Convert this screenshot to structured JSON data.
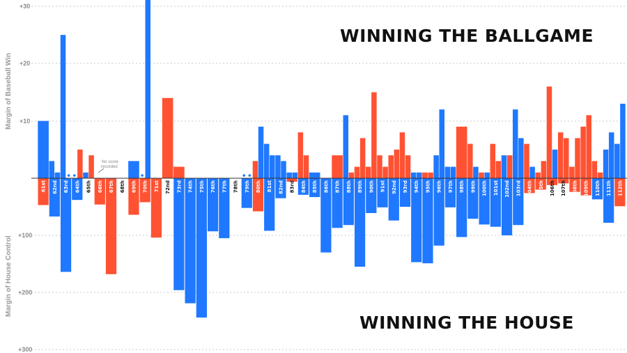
{
  "headline_top": "WINNING THE BALLGAME",
  "headline_bottom": "WINNING THE HOUSE",
  "note": {
    "line1": "No score",
    "line2": "recorded"
  },
  "colors": {
    "democrat": "#1f78ff",
    "republican": "#ff5233",
    "grid": "#c8c8c8",
    "baseline": "#333333"
  },
  "chart_data": {
    "type": "bar",
    "upper_axis_label": "Margin of Baseball Win",
    "lower_axis_label": "Margin of House Control",
    "upper_ticks": [
      "+30",
      "+20",
      "+10"
    ],
    "lower_ticks": [
      "+100",
      "+200",
      "+300"
    ],
    "upper_ylim": [
      0,
      30
    ],
    "lower_ylim": [
      0,
      300
    ],
    "legend": "none",
    "grid": true,
    "congresses": [
      "61st",
      "62nd",
      "63rd",
      "64th",
      "65th",
      "66th",
      "67th",
      "68th",
      "69th",
      "70th",
      "71st",
      "72nd",
      "73rd",
      "74th",
      "75th",
      "76th",
      "77th",
      "78th",
      "79th",
      "80th",
      "81st",
      "82nd",
      "83rd",
      "84th",
      "85th",
      "86th",
      "87th",
      "88th",
      "89th",
      "90th",
      "91st",
      "92nd",
      "93rd",
      "94th",
      "95th",
      "96th",
      "97th",
      "98th",
      "99th",
      "100th",
      "101st",
      "102nd",
      "103rd",
      "104th",
      "105th",
      "106th",
      "107th",
      "108th",
      "109th",
      "110th",
      "111th",
      "112th"
    ],
    "baseball_games": [
      {
        "congress": "61st",
        "winner": "D",
        "margin": 10
      },
      {
        "congress": "62nd",
        "winner": "D",
        "margin": 3
      },
      {
        "congress": "62nd",
        "winner": "D",
        "margin": 1
      },
      {
        "congress": "63rd",
        "winner": "D",
        "margin": 25
      },
      {
        "congress": "63rd",
        "winner": "D",
        "margin": 0
      },
      {
        "congress": "64th",
        "winner": "D",
        "margin": 0
      },
      {
        "congress": "64th",
        "winner": "R",
        "margin": 5
      },
      {
        "congress": "65th",
        "winner": "D",
        "margin": 1
      },
      {
        "congress": "65th",
        "winner": "R",
        "margin": 4
      },
      {
        "congress": "69th",
        "winner": "D",
        "margin": 3
      },
      {
        "congress": "70th",
        "winner": "D",
        "margin": 0
      },
      {
        "congress": "70th",
        "winner": "D",
        "margin": 33
      },
      {
        "congress": "72nd",
        "winner": "R",
        "margin": 14
      },
      {
        "congress": "73rd",
        "winner": "R",
        "margin": 2
      },
      {
        "congress": "79th",
        "winner": "D",
        "margin": 0
      },
      {
        "congress": "79th",
        "winner": "D",
        "margin": 0
      },
      {
        "congress": "80th",
        "winner": "R",
        "margin": 3
      },
      {
        "congress": "80th",
        "winner": "D",
        "margin": 9
      },
      {
        "congress": "81st",
        "winner": "D",
        "margin": 6
      },
      {
        "congress": "81st",
        "winner": "D",
        "margin": 4
      },
      {
        "congress": "82nd",
        "winner": "D",
        "margin": 4
      },
      {
        "congress": "82nd",
        "winner": "D",
        "margin": 3
      },
      {
        "congress": "83rd",
        "winner": "D",
        "margin": 1
      },
      {
        "congress": "83rd",
        "winner": "D",
        "margin": 1
      },
      {
        "congress": "84th",
        "winner": "R",
        "margin": 8
      },
      {
        "congress": "84th",
        "winner": "R",
        "margin": 4
      },
      {
        "congress": "85th",
        "winner": "D",
        "margin": 1
      },
      {
        "congress": "87th",
        "winner": "R",
        "margin": 4
      },
      {
        "congress": "88th",
        "winner": "D",
        "margin": 11
      },
      {
        "congress": "88th",
        "winner": "R",
        "margin": 1
      },
      {
        "congress": "89th",
        "winner": "R",
        "margin": 2
      },
      {
        "congress": "89th",
        "winner": "R",
        "margin": 7
      },
      {
        "congress": "90th",
        "winner": "R",
        "margin": 2
      },
      {
        "congress": "90th",
        "winner": "R",
        "margin": 15
      },
      {
        "congress": "91st",
        "winner": "R",
        "margin": 4
      },
      {
        "congress": "91st",
        "winner": "R",
        "margin": 2
      },
      {
        "congress": "92nd",
        "winner": "R",
        "margin": 4
      },
      {
        "congress": "92nd",
        "winner": "R",
        "margin": 5
      },
      {
        "congress": "93rd",
        "winner": "R",
        "margin": 8
      },
      {
        "congress": "93rd",
        "winner": "R",
        "margin": 4
      },
      {
        "congress": "94th",
        "winner": "D",
        "margin": 1
      },
      {
        "congress": "94th",
        "winner": "D",
        "margin": 1
      },
      {
        "congress": "95th",
        "winner": "R",
        "margin": 1
      },
      {
        "congress": "95th",
        "winner": "R",
        "margin": 1
      },
      {
        "congress": "96th",
        "winner": "D",
        "margin": 4
      },
      {
        "congress": "96th",
        "winner": "D",
        "margin": 12
      },
      {
        "congress": "97th",
        "winner": "D",
        "margin": 2
      },
      {
        "congress": "97th",
        "winner": "D",
        "margin": 2
      },
      {
        "congress": "98th",
        "winner": "R",
        "margin": 9
      },
      {
        "congress": "99th",
        "winner": "R",
        "margin": 6
      },
      {
        "congress": "99th",
        "winner": "D",
        "margin": 2
      },
      {
        "congress": "100th",
        "winner": "R",
        "margin": 1
      },
      {
        "congress": "100th",
        "winner": "D",
        "margin": 1
      },
      {
        "congress": "101st",
        "winner": "R",
        "margin": 6
      },
      {
        "congress": "101st",
        "winner": "R",
        "margin": 3
      },
      {
        "congress": "102nd",
        "winner": "D",
        "margin": 4
      },
      {
        "congress": "102nd",
        "winner": "R",
        "margin": 4
      },
      {
        "congress": "103rd",
        "winner": "D",
        "margin": 12
      },
      {
        "congress": "103rd",
        "winner": "D",
        "margin": 7
      },
      {
        "congress": "104th",
        "winner": "R",
        "margin": 6
      },
      {
        "congress": "104th",
        "winner": "D",
        "margin": 2
      },
      {
        "congress": "105th",
        "winner": "R",
        "margin": 1
      },
      {
        "congress": "105th",
        "winner": "R",
        "margin": 3
      },
      {
        "congress": "106th",
        "winner": "R",
        "margin": 16
      },
      {
        "congress": "106th",
        "winner": "D",
        "margin": 5
      },
      {
        "congress": "107th",
        "winner": "R",
        "margin": 8
      },
      {
        "congress": "107th",
        "winner": "R",
        "margin": 7
      },
      {
        "congress": "108th",
        "winner": "R",
        "margin": 2
      },
      {
        "congress": "108th",
        "winner": "R",
        "margin": 7
      },
      {
        "congress": "109th",
        "winner": "R",
        "margin": 9
      },
      {
        "congress": "109th",
        "winner": "R",
        "margin": 11
      },
      {
        "congress": "110th",
        "winner": "R",
        "margin": 3
      },
      {
        "congress": "110th",
        "winner": "R",
        "margin": 1
      },
      {
        "congress": "111th",
        "winner": "D",
        "margin": 5
      },
      {
        "congress": "111th",
        "winner": "D",
        "margin": 8
      },
      {
        "congress": "112th",
        "winner": "D",
        "margin": 6
      },
      {
        "congress": "112th",
        "winner": "D",
        "margin": 13
      }
    ],
    "house_control": [
      {
        "congress": "61st",
        "party": "R",
        "margin": 47
      },
      {
        "congress": "62nd",
        "party": "D",
        "margin": 67
      },
      {
        "congress": "63rd",
        "party": "D",
        "margin": 164
      },
      {
        "congress": "64th",
        "party": "D",
        "margin": 38
      },
      {
        "congress": "65th",
        "party": "D",
        "margin": 0
      },
      {
        "congress": "66th",
        "party": "R",
        "margin": 46
      },
      {
        "congress": "67th",
        "party": "R",
        "margin": 168
      },
      {
        "congress": "68th",
        "party": "R",
        "margin": 0
      },
      {
        "congress": "69th",
        "party": "R",
        "margin": 64
      },
      {
        "congress": "70th",
        "party": "R",
        "margin": 42
      },
      {
        "congress": "71st",
        "party": "R",
        "margin": 104
      },
      {
        "congress": "72nd",
        "party": "D",
        "margin": 0
      },
      {
        "congress": "73rd",
        "party": "D",
        "margin": 196
      },
      {
        "congress": "74th",
        "party": "D",
        "margin": 219
      },
      {
        "congress": "75th",
        "party": "D",
        "margin": 244
      },
      {
        "congress": "76th",
        "party": "D",
        "margin": 93
      },
      {
        "congress": "77th",
        "party": "D",
        "margin": 105
      },
      {
        "congress": "78th",
        "party": "D",
        "margin": 0
      },
      {
        "congress": "79th",
        "party": "D",
        "margin": 52
      },
      {
        "congress": "80th",
        "party": "R",
        "margin": 58
      },
      {
        "congress": "81st",
        "party": "D",
        "margin": 92
      },
      {
        "congress": "82nd",
        "party": "D",
        "margin": 35
      },
      {
        "congress": "83rd",
        "party": "R",
        "margin": 6
      },
      {
        "congress": "84th",
        "party": "D",
        "margin": 29
      },
      {
        "congress": "85th",
        "party": "D",
        "margin": 33
      },
      {
        "congress": "86th",
        "party": "D",
        "margin": 130
      },
      {
        "congress": "87th",
        "party": "D",
        "margin": 87
      },
      {
        "congress": "88th",
        "party": "D",
        "margin": 82
      },
      {
        "congress": "89th",
        "party": "D",
        "margin": 155
      },
      {
        "congress": "90th",
        "party": "D",
        "margin": 61
      },
      {
        "congress": "91st",
        "party": "D",
        "margin": 51
      },
      {
        "congress": "92nd",
        "party": "D",
        "margin": 74
      },
      {
        "congress": "93rd",
        "party": "D",
        "margin": 50
      },
      {
        "congress": "94th",
        "party": "D",
        "margin": 147
      },
      {
        "congress": "95th",
        "party": "D",
        "margin": 149
      },
      {
        "congress": "96th",
        "party": "D",
        "margin": 118
      },
      {
        "congress": "97th",
        "party": "D",
        "margin": 51
      },
      {
        "congress": "98th",
        "party": "D",
        "margin": 103
      },
      {
        "congress": "99th",
        "party": "D",
        "margin": 71
      },
      {
        "congress": "100th",
        "party": "D",
        "margin": 81
      },
      {
        "congress": "101st",
        "party": "D",
        "margin": 85
      },
      {
        "congress": "102nd",
        "party": "D",
        "margin": 100
      },
      {
        "congress": "103rd",
        "party": "D",
        "margin": 82
      },
      {
        "congress": "104th",
        "party": "R",
        "margin": 26
      },
      {
        "congress": "105th",
        "party": "R",
        "margin": 20
      },
      {
        "congress": "106th",
        "party": "R",
        "margin": 12
      },
      {
        "congress": "107th",
        "party": "R",
        "margin": 9
      },
      {
        "congress": "108th",
        "party": "R",
        "margin": 24
      },
      {
        "congress": "109th",
        "party": "R",
        "margin": 30
      },
      {
        "congress": "110th",
        "party": "D",
        "margin": 37
      },
      {
        "congress": "111th",
        "party": "D",
        "margin": 78
      },
      {
        "congress": "112th",
        "party": "R",
        "margin": 49
      }
    ]
  }
}
